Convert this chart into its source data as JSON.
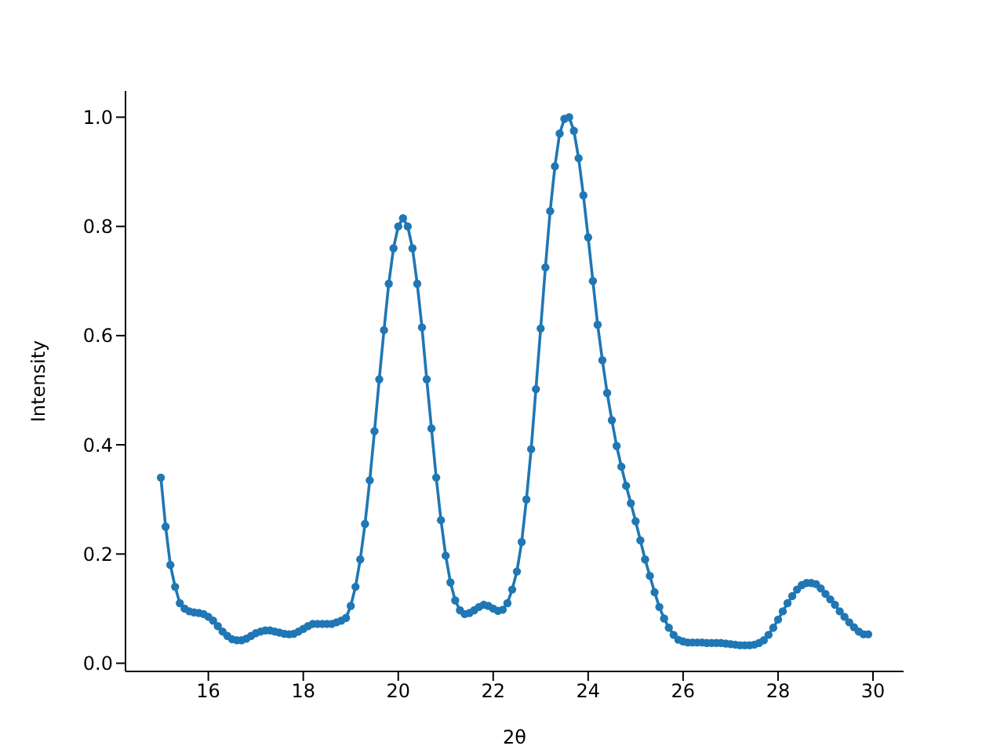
{
  "chart_data": {
    "type": "line",
    "xlabel": "2θ",
    "ylabel": "Intensity",
    "x": [
      15.0,
      15.1,
      15.2,
      15.3,
      15.4,
      15.5,
      15.6,
      15.7,
      15.8,
      15.9,
      16.0,
      16.1,
      16.2,
      16.3,
      16.4,
      16.5,
      16.6,
      16.7,
      16.8,
      16.9,
      17.0,
      17.1,
      17.2,
      17.3,
      17.4,
      17.5,
      17.6,
      17.7,
      17.8,
      17.9,
      18.0,
      18.1,
      18.2,
      18.3,
      18.4,
      18.5,
      18.6,
      18.7,
      18.8,
      18.9,
      19.0,
      19.1,
      19.2,
      19.3,
      19.4,
      19.5,
      19.6,
      19.7,
      19.8,
      19.9,
      20.0,
      20.1,
      20.2,
      20.3,
      20.4,
      20.5,
      20.6,
      20.7,
      20.8,
      20.9,
      21.0,
      21.1,
      21.2,
      21.3,
      21.4,
      21.5,
      21.6,
      21.7,
      21.8,
      21.9,
      22.0,
      22.1,
      22.2,
      22.3,
      22.4,
      22.5,
      22.6,
      22.7,
      22.8,
      22.9,
      23.0,
      23.1,
      23.2,
      23.3,
      23.4,
      23.5,
      23.6,
      23.7,
      23.8,
      23.9,
      24.0,
      24.1,
      24.2,
      24.3,
      24.4,
      24.5,
      24.6,
      24.7,
      24.8,
      24.9,
      25.0,
      25.1,
      25.2,
      25.3,
      25.4,
      25.5,
      25.6,
      25.7,
      25.8,
      25.9,
      26.0,
      26.1,
      26.2,
      26.3,
      26.4,
      26.5,
      26.6,
      26.7,
      26.8,
      26.9,
      27.0,
      27.1,
      27.2,
      27.3,
      27.4,
      27.5,
      27.6,
      27.7,
      27.8,
      27.9,
      28.0,
      28.1,
      28.2,
      28.3,
      28.4,
      28.5,
      28.6,
      28.7,
      28.8,
      28.9,
      29.0,
      29.1,
      29.2,
      29.3,
      29.4,
      29.5,
      29.6,
      29.7,
      29.8,
      29.9
    ],
    "series": [
      {
        "color": "#1f77b4",
        "values": [
          0.34,
          0.25,
          0.18,
          0.14,
          0.11,
          0.1,
          0.095,
          0.093,
          0.092,
          0.09,
          0.085,
          0.078,
          0.068,
          0.058,
          0.05,
          0.044,
          0.042,
          0.042,
          0.045,
          0.05,
          0.055,
          0.058,
          0.06,
          0.06,
          0.058,
          0.056,
          0.054,
          0.053,
          0.054,
          0.058,
          0.063,
          0.068,
          0.072,
          0.072,
          0.072,
          0.072,
          0.072,
          0.075,
          0.078,
          0.083,
          0.105,
          0.14,
          0.19,
          0.255,
          0.335,
          0.425,
          0.52,
          0.61,
          0.695,
          0.76,
          0.8,
          0.815,
          0.8,
          0.76,
          0.695,
          0.615,
          0.52,
          0.43,
          0.34,
          0.262,
          0.197,
          0.148,
          0.115,
          0.097,
          0.09,
          0.092,
          0.097,
          0.103,
          0.107,
          0.105,
          0.1,
          0.096,
          0.098,
          0.11,
          0.135,
          0.168,
          0.222,
          0.3,
          0.392,
          0.502,
          0.613,
          0.725,
          0.828,
          0.91,
          0.97,
          0.997,
          1.0,
          0.975,
          0.925,
          0.857,
          0.78,
          0.7,
          0.62,
          0.555,
          0.495,
          0.445,
          0.398,
          0.36,
          0.325,
          0.293,
          0.26,
          0.225,
          0.19,
          0.16,
          0.13,
          0.103,
          0.082,
          0.065,
          0.052,
          0.043,
          0.04,
          0.038,
          0.038,
          0.038,
          0.038,
          0.037,
          0.037,
          0.037,
          0.037,
          0.036,
          0.035,
          0.034,
          0.033,
          0.033,
          0.033,
          0.034,
          0.037,
          0.042,
          0.052,
          0.065,
          0.08,
          0.095,
          0.11,
          0.123,
          0.135,
          0.143,
          0.147,
          0.147,
          0.145,
          0.137,
          0.127,
          0.117,
          0.107,
          0.095,
          0.085,
          0.075,
          0.066,
          0.058,
          0.053,
          0.053
        ]
      }
    ],
    "xlim": [
      14.255,
      30.645
    ],
    "xticks": [
      16,
      18,
      20,
      22,
      24,
      26,
      28,
      30
    ],
    "ylim": [
      -0.015,
      1.048
    ],
    "yticks": [
      {
        "value": 0,
        "label": "0.0"
      },
      0.2,
      0.4,
      0.6,
      0.8,
      {
        "value": 1,
        "label": "1.0"
      }
    ],
    "marker": "circle",
    "line_style": "solid",
    "grid": false,
    "legend": false
  }
}
